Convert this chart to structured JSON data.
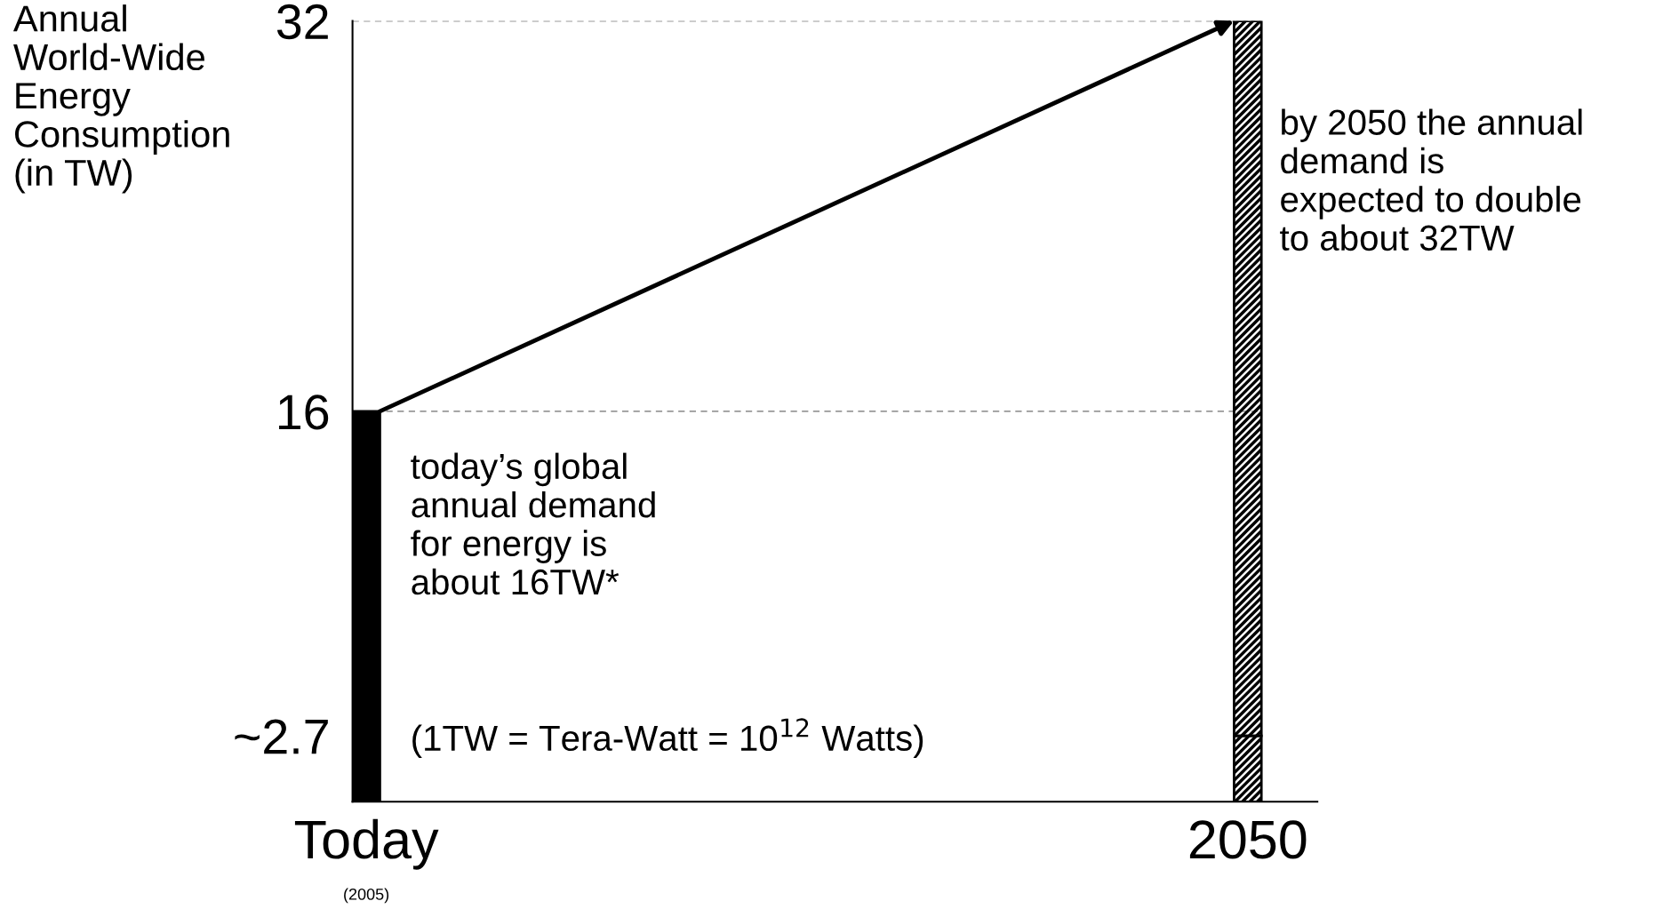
{
  "chart_data": {
    "type": "bar",
    "stacked": true,
    "ylabel": "Annual\nWorld-Wide\nEnergy\nConsumption\n(in TW)",
    "categories": [
      "Today",
      "2050"
    ],
    "series": [
      {
        "color": "#000000",
        "values": [
          16,
          null
        ]
      },
      {
        "color": "#000000",
        "values": [
          null,
          2.7
        ]
      },
      {
        "color": "#000000",
        "values": [
          null,
          29.3
        ]
      }
    ],
    "ylim": [
      0,
      32
    ],
    "yticks": [
      {
        "value": 2.7,
        "label": "~2.7"
      },
      16,
      32
    ],
    "ref_lines": [
      {
        "axis": "y",
        "value": 16,
        "color": "#999999",
        "line_style": "dashed"
      },
      {
        "axis": "y",
        "value": 32,
        "color": "#999999",
        "line_style": "dashed"
      }
    ],
    "annotations": [
      "today’s global\nannual demand\nfor energy is\nabout 16TW*",
      "(1TW = Tera-Watt = 10$^{12}$ Watts)",
      "by 2050 the annual\ndemand is\nexpected to double\nto about 32TW",
      "(2005)"
    ],
    "grid": false,
    "legend": false
  }
}
